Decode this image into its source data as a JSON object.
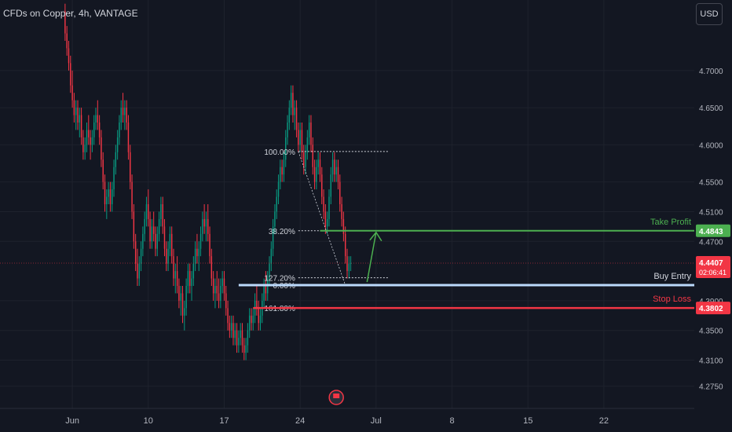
{
  "header": {
    "symbol": "CFDs on Copper, 4h, VANTAGE"
  },
  "currency_button": "USD",
  "icons": {
    "event": "flag-icon"
  },
  "chart_data": {
    "type": "candlestick",
    "price_axis": {
      "ticks": [
        "4.7000",
        "4.6500",
        "4.6000",
        "4.5500",
        "4.5100",
        "4.4700",
        "4.3900",
        "4.3500",
        "4.3100",
        "4.2750"
      ],
      "tick_values": [
        4.7,
        4.65,
        4.6,
        4.55,
        4.51,
        4.47,
        4.39,
        4.35,
        4.31,
        4.275
      ],
      "ylim": [
        4.245,
        4.795
      ]
    },
    "time_axis": {
      "labels": [
        "Jun",
        "10",
        "17",
        "24",
        "Jul",
        "8",
        "15",
        "22"
      ],
      "label_index": [
        4,
        46,
        88,
        130,
        172,
        214,
        256,
        298
      ],
      "xlim": [
        -36,
        348
      ]
    },
    "series": [
      {
        "name": "",
        "ohlc": [
          [
            4.78,
            4.79,
            4.74,
            4.75
          ],
          [
            4.75,
            4.76,
            4.72,
            4.73
          ],
          [
            4.73,
            4.74,
            4.7,
            4.71
          ],
          [
            4.71,
            4.72,
            4.67,
            4.68
          ],
          [
            4.68,
            4.7,
            4.65,
            4.66
          ],
          [
            4.66,
            4.67,
            4.63,
            4.64
          ],
          [
            4.64,
            4.66,
            4.62,
            4.65
          ],
          [
            4.65,
            4.66,
            4.62,
            4.63
          ],
          [
            4.63,
            4.65,
            4.61,
            4.64
          ],
          [
            4.64,
            4.65,
            4.6,
            4.61
          ],
          [
            4.61,
            4.62,
            4.58,
            4.59
          ],
          [
            4.59,
            4.61,
            4.58,
            4.6
          ],
          [
            4.6,
            4.63,
            4.59,
            4.62
          ],
          [
            4.62,
            4.64,
            4.6,
            4.61
          ],
          [
            4.61,
            4.62,
            4.58,
            4.6
          ],
          [
            4.6,
            4.62,
            4.59,
            4.61
          ],
          [
            4.61,
            4.64,
            4.6,
            4.63
          ],
          [
            4.63,
            4.65,
            4.62,
            4.64
          ],
          [
            4.64,
            4.66,
            4.62,
            4.63
          ],
          [
            4.63,
            4.64,
            4.6,
            4.61
          ],
          [
            4.61,
            4.62,
            4.57,
            4.58
          ],
          [
            4.58,
            4.59,
            4.54,
            4.55
          ],
          [
            4.55,
            4.56,
            4.51,
            4.52
          ],
          [
            4.52,
            4.54,
            4.5,
            4.53
          ],
          [
            4.53,
            4.55,
            4.52,
            4.54
          ],
          [
            4.54,
            4.55,
            4.51,
            4.52
          ],
          [
            4.52,
            4.55,
            4.51,
            4.54
          ],
          [
            4.54,
            4.58,
            4.53,
            4.57
          ],
          [
            4.57,
            4.6,
            4.56,
            4.59
          ],
          [
            4.59,
            4.62,
            4.58,
            4.61
          ],
          [
            4.61,
            4.64,
            4.6,
            4.63
          ],
          [
            4.63,
            4.66,
            4.62,
            4.65
          ],
          [
            4.65,
            4.67,
            4.63,
            4.64
          ],
          [
            4.64,
            4.66,
            4.62,
            4.65
          ],
          [
            4.65,
            4.66,
            4.62,
            4.63
          ],
          [
            4.63,
            4.64,
            4.58,
            4.59
          ],
          [
            4.59,
            4.6,
            4.54,
            4.55
          ],
          [
            4.55,
            4.56,
            4.5,
            4.51
          ],
          [
            4.51,
            4.52,
            4.46,
            4.47
          ],
          [
            4.47,
            4.48,
            4.43,
            4.44
          ],
          [
            4.44,
            4.46,
            4.41,
            4.42
          ],
          [
            4.42,
            4.45,
            4.41,
            4.44
          ],
          [
            4.44,
            4.47,
            4.43,
            4.46
          ],
          [
            4.46,
            4.49,
            4.45,
            4.48
          ],
          [
            4.48,
            4.51,
            4.47,
            4.5
          ],
          [
            4.5,
            4.53,
            4.49,
            4.52
          ],
          [
            4.52,
            4.54,
            4.49,
            4.5
          ],
          [
            4.5,
            4.51,
            4.46,
            4.47
          ],
          [
            4.47,
            4.5,
            4.46,
            4.49
          ],
          [
            4.49,
            4.51,
            4.47,
            4.48
          ],
          [
            4.48,
            4.49,
            4.45,
            4.46
          ],
          [
            4.46,
            4.49,
            4.45,
            4.48
          ],
          [
            4.48,
            4.51,
            4.47,
            4.5
          ],
          [
            4.5,
            4.53,
            4.49,
            4.52
          ],
          [
            4.52,
            4.53,
            4.48,
            4.49
          ],
          [
            4.49,
            4.5,
            4.45,
            4.46
          ],
          [
            4.46,
            4.47,
            4.43,
            4.44
          ],
          [
            4.44,
            4.47,
            4.43,
            4.46
          ],
          [
            4.46,
            4.49,
            4.45,
            4.48
          ],
          [
            4.48,
            4.49,
            4.44,
            4.45
          ],
          [
            4.45,
            4.46,
            4.41,
            4.42
          ],
          [
            4.42,
            4.44,
            4.4,
            4.43
          ],
          [
            4.43,
            4.45,
            4.4,
            4.41
          ],
          [
            4.41,
            4.42,
            4.38,
            4.39
          ],
          [
            4.39,
            4.41,
            4.37,
            4.4
          ],
          [
            4.4,
            4.41,
            4.36,
            4.37
          ],
          [
            4.37,
            4.39,
            4.35,
            4.38
          ],
          [
            4.38,
            4.42,
            4.37,
            4.41
          ],
          [
            4.41,
            4.44,
            4.4,
            4.43
          ],
          [
            4.43,
            4.44,
            4.4,
            4.41
          ],
          [
            4.41,
            4.43,
            4.39,
            4.42
          ],
          [
            4.42,
            4.45,
            4.41,
            4.44
          ],
          [
            4.44,
            4.47,
            4.43,
            4.46
          ],
          [
            4.46,
            4.48,
            4.44,
            4.45
          ],
          [
            4.45,
            4.47,
            4.43,
            4.46
          ],
          [
            4.46,
            4.49,
            4.45,
            4.48
          ],
          [
            4.48,
            4.51,
            4.47,
            4.5
          ],
          [
            4.5,
            4.52,
            4.48,
            4.49
          ],
          [
            4.49,
            4.51,
            4.47,
            4.5
          ],
          [
            4.5,
            4.52,
            4.47,
            4.48
          ],
          [
            4.48,
            4.49,
            4.44,
            4.45
          ],
          [
            4.45,
            4.46,
            4.41,
            4.42
          ],
          [
            4.42,
            4.43,
            4.39,
            4.4
          ],
          [
            4.4,
            4.42,
            4.38,
            4.41
          ],
          [
            4.41,
            4.43,
            4.39,
            4.4
          ],
          [
            4.4,
            4.42,
            4.38,
            4.39
          ],
          [
            4.39,
            4.42,
            4.38,
            4.41
          ],
          [
            4.41,
            4.43,
            4.4,
            4.42
          ],
          [
            4.42,
            4.43,
            4.39,
            4.4
          ],
          [
            4.4,
            4.41,
            4.37,
            4.38
          ],
          [
            4.38,
            4.39,
            4.35,
            4.36
          ],
          [
            4.36,
            4.37,
            4.34,
            4.35
          ],
          [
            4.35,
            4.37,
            4.34,
            4.36
          ],
          [
            4.36,
            4.37,
            4.33,
            4.34
          ],
          [
            4.34,
            4.36,
            4.33,
            4.35
          ],
          [
            4.35,
            4.36,
            4.32,
            4.33
          ],
          [
            4.33,
            4.35,
            4.32,
            4.34
          ],
          [
            4.34,
            4.36,
            4.33,
            4.35
          ],
          [
            4.35,
            4.36,
            4.32,
            4.33
          ],
          [
            4.33,
            4.34,
            4.31,
            4.32
          ],
          [
            4.32,
            4.34,
            4.31,
            4.33
          ],
          [
            4.33,
            4.36,
            4.32,
            4.35
          ],
          [
            4.35,
            4.38,
            4.34,
            4.37
          ],
          [
            4.37,
            4.38,
            4.35,
            4.36
          ],
          [
            4.36,
            4.38,
            4.35,
            4.37
          ],
          [
            4.37,
            4.4,
            4.36,
            4.39
          ],
          [
            4.39,
            4.41,
            4.37,
            4.38
          ],
          [
            4.38,
            4.39,
            4.35,
            4.36
          ],
          [
            4.36,
            4.38,
            4.35,
            4.37
          ],
          [
            4.37,
            4.4,
            4.36,
            4.39
          ],
          [
            4.39,
            4.42,
            4.38,
            4.41
          ],
          [
            4.41,
            4.43,
            4.39,
            4.4
          ],
          [
            4.4,
            4.43,
            4.39,
            4.42
          ],
          [
            4.42,
            4.45,
            4.41,
            4.44
          ],
          [
            4.44,
            4.47,
            4.43,
            4.46
          ],
          [
            4.46,
            4.5,
            4.45,
            4.49
          ],
          [
            4.49,
            4.52,
            4.48,
            4.51
          ],
          [
            4.51,
            4.54,
            4.5,
            4.53
          ],
          [
            4.53,
            4.56,
            4.52,
            4.55
          ],
          [
            4.55,
            4.58,
            4.54,
            4.57
          ],
          [
            4.57,
            4.58,
            4.55,
            4.56
          ],
          [
            4.56,
            4.59,
            4.55,
            4.58
          ],
          [
            4.58,
            4.62,
            4.57,
            4.61
          ],
          [
            4.61,
            4.64,
            4.6,
            4.63
          ],
          [
            4.63,
            4.66,
            4.62,
            4.65
          ],
          [
            4.65,
            4.68,
            4.64,
            4.67
          ],
          [
            4.67,
            4.68,
            4.63,
            4.64
          ],
          [
            4.64,
            4.66,
            4.62,
            4.65
          ],
          [
            4.65,
            4.66,
            4.61,
            4.62
          ],
          [
            4.62,
            4.63,
            4.59,
            4.6
          ],
          [
            4.6,
            4.63,
            4.59,
            4.62
          ],
          [
            4.62,
            4.63,
            4.58,
            4.59
          ],
          [
            4.59,
            4.6,
            4.56,
            4.57
          ],
          [
            4.57,
            4.6,
            4.56,
            4.59
          ],
          [
            4.59,
            4.62,
            4.58,
            4.61
          ],
          [
            4.61,
            4.64,
            4.6,
            4.63
          ],
          [
            4.63,
            4.64,
            4.59,
            4.6
          ],
          [
            4.6,
            4.61,
            4.56,
            4.57
          ],
          [
            4.57,
            4.58,
            4.54,
            4.55
          ],
          [
            4.55,
            4.58,
            4.54,
            4.57
          ],
          [
            4.57,
            4.59,
            4.56,
            4.58
          ],
          [
            4.58,
            4.59,
            4.55,
            4.56
          ],
          [
            4.56,
            4.57,
            4.52,
            4.53
          ],
          [
            4.53,
            4.54,
            4.5,
            4.51
          ],
          [
            4.51,
            4.52,
            4.48,
            4.49
          ],
          [
            4.49,
            4.51,
            4.48,
            4.5
          ],
          [
            4.5,
            4.54,
            4.49,
            4.53
          ],
          [
            4.53,
            4.57,
            4.52,
            4.56
          ],
          [
            4.56,
            4.59,
            4.55,
            4.58
          ],
          [
            4.58,
            4.59,
            4.55,
            4.56
          ],
          [
            4.56,
            4.58,
            4.55,
            4.57
          ],
          [
            4.57,
            4.58,
            4.54,
            4.55
          ],
          [
            4.55,
            4.56,
            4.51,
            4.52
          ],
          [
            4.52,
            4.53,
            4.49,
            4.5
          ],
          [
            4.5,
            4.51,
            4.47,
            4.48
          ],
          [
            4.48,
            4.49,
            4.44,
            4.45
          ],
          [
            4.45,
            4.46,
            4.42,
            4.43
          ],
          [
            4.43,
            4.45,
            4.42,
            4.44
          ],
          [
            4.44,
            4.45,
            4.43,
            4.4407
          ]
        ]
      }
    ],
    "annotations": {
      "fib_levels": [
        {
          "label": "100.00%",
          "price": 4.591
        },
        {
          "label": "38.20%",
          "price": 4.4843
        },
        {
          "label": "127.20%",
          "price": 4.421
        },
        {
          "label": "0.00%",
          "price": 4.411
        },
        {
          "label": "161.80%",
          "price": 4.3802
        }
      ],
      "take_profit": {
        "label": "Take Profit",
        "price": 4.4843,
        "badge": "4.4843",
        "color": "#4caf50"
      },
      "buy_entry": {
        "label": "Buy Entry",
        "price": 4.411,
        "color": "#bbd9fb"
      },
      "stop_loss": {
        "label": "Stop Loss",
        "price": 4.3802,
        "badge": "4.3802",
        "color": "#f23645"
      },
      "last_price": {
        "badge": "4.4407",
        "countdown": "02:06:41",
        "price": 4.4407,
        "color": "#f23645"
      },
      "up_color": "#089981",
      "down_color": "#f23645"
    }
  }
}
